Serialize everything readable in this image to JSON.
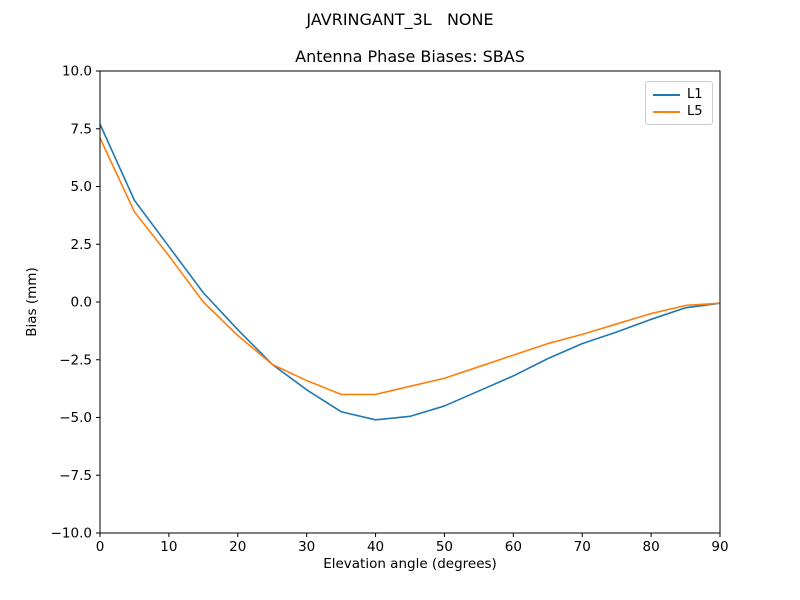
{
  "chart_data": {
    "type": "line",
    "suptitle": "JAVRINGANT_3L   NONE",
    "title": "Antenna Phase Biases: SBAS",
    "xlabel": "Elevation angle (degrees)",
    "ylabel": "Bias (mm)",
    "xlim": [
      0,
      90
    ],
    "ylim": [
      -10,
      10
    ],
    "xticks": [
      0,
      10,
      20,
      30,
      40,
      50,
      60,
      70,
      80,
      90
    ],
    "yticks": [
      -10,
      -7.5,
      -5,
      -2.5,
      0,
      2.5,
      5,
      7.5,
      10
    ],
    "grid": false,
    "legend_position": "upper-right",
    "background_color": "#ffffff",
    "axes_color": "#000000",
    "x": [
      0,
      5,
      10,
      15,
      20,
      25,
      30,
      35,
      40,
      45,
      50,
      55,
      60,
      65,
      70,
      75,
      80,
      85,
      90
    ],
    "series": [
      {
        "name": "L1",
        "color": "#1f77b4",
        "values": [
          7.7,
          4.4,
          2.4,
          0.4,
          -1.2,
          -2.7,
          -3.8,
          -4.75,
          -5.1,
          -4.95,
          -4.5,
          -3.85,
          -3.2,
          -2.45,
          -1.8,
          -1.3,
          -0.75,
          -0.25,
          -0.05
        ]
      },
      {
        "name": "L5",
        "color": "#ff7f0e",
        "values": [
          7.1,
          3.9,
          2.0,
          0.0,
          -1.45,
          -2.7,
          -3.4,
          -4.0,
          -4.0,
          -3.65,
          -3.3,
          -2.8,
          -2.3,
          -1.8,
          -1.4,
          -0.95,
          -0.5,
          -0.15,
          -0.05
        ]
      }
    ]
  }
}
